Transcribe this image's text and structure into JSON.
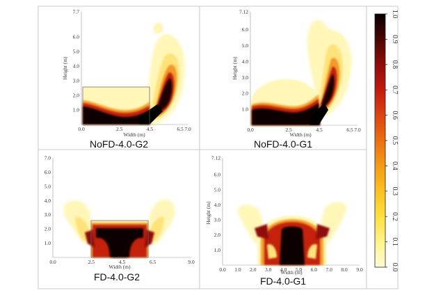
{
  "chart_data": [
    {
      "type": "heatmap",
      "caption": "NoFD-4.0-G2",
      "xlabel": "Width (m)",
      "ylabel": "Height (m)",
      "xlim": [
        0,
        7.0
      ],
      "ylim": [
        0,
        7.7
      ],
      "xticks": [
        "0.0",
        "2.5",
        "4.5",
        "6.5",
        "7.0"
      ],
      "xtick_values": [
        0,
        2.5,
        4.5,
        6.5,
        7.0
      ],
      "yticks": [
        "1.0",
        "2.0",
        "3.0",
        "4.0",
        "5.0",
        "6.0",
        "7.7"
      ],
      "ytick_values": [
        1,
        2,
        3,
        4,
        5,
        6,
        7.7
      ]
    },
    {
      "type": "heatmap",
      "caption": "NoFD-4.0-G1",
      "xlabel": "Width (m)",
      "ylabel": "Height (m)",
      "xlim": [
        0,
        7.0
      ],
      "ylim": [
        0,
        7.12
      ],
      "xticks": [
        "0.0",
        "2.5",
        "4.5",
        "6.5",
        "7.0"
      ],
      "xtick_values": [
        0,
        2.5,
        4.5,
        6.5,
        7.0
      ],
      "yticks": [
        "1.0",
        "2.0",
        "3.0",
        "4.0",
        "5.0",
        "6.0",
        "7.12"
      ],
      "ytick_values": [
        1,
        2,
        3,
        4,
        5,
        6,
        7.12
      ]
    },
    {
      "type": "heatmap",
      "caption": "FD-4.0-G2",
      "xlabel": "Width (m)",
      "ylabel": "",
      "xlim": [
        0,
        9.0
      ],
      "ylim": [
        0,
        7.0
      ],
      "xticks": [
        "0.0",
        "2.5",
        "4.5",
        "6.5",
        "9.0"
      ],
      "xtick_values": [
        0,
        2.5,
        4.5,
        6.5,
        9.0
      ],
      "yticks": [
        "1.0",
        "2.0",
        "3.0",
        "4.0",
        "5.0",
        "6.0",
        "7.0"
      ],
      "ytick_values": [
        1,
        2,
        3,
        4,
        5,
        6,
        7
      ]
    },
    {
      "type": "heatmap",
      "caption": "FD-4.0-G1",
      "xlabel": "Width (m)",
      "ylabel": "Height (m)",
      "xlim": [
        0,
        9.0
      ],
      "ylim": [
        0,
        7.12
      ],
      "xticks": [
        "0.0",
        "1.0",
        "2.0",
        "3.0",
        "4.0",
        "5.0",
        "6.0",
        "7.0",
        "8.0",
        "9.0"
      ],
      "xtick_values": [
        0,
        1,
        2,
        3,
        4,
        5,
        6,
        7,
        8,
        9
      ],
      "yticks": [
        "1.0",
        "2.0",
        "3.0",
        "4.0",
        "5.0",
        "6.0",
        "7.12"
      ],
      "ytick_values": [
        1,
        2,
        3,
        4,
        5,
        6,
        7.12
      ]
    }
  ],
  "colorbar": {
    "range": [
      0.0,
      1.0
    ],
    "ticks": [
      "0.0",
      "0.1",
      "0.2",
      "0.3",
      "0.4",
      "0.5",
      "0.6",
      "0.7",
      "0.8",
      "0.9",
      "1.0"
    ],
    "tick_values": [
      0.0,
      0.1,
      0.2,
      0.3,
      0.4,
      0.5,
      0.6,
      0.7,
      0.8,
      0.9,
      1.0
    ],
    "colors": [
      "#fffbd6",
      "#fff38a",
      "#ffe040",
      "#fcc020",
      "#f49a16",
      "#ea7010",
      "#dc4410",
      "#c21b0f",
      "#8f0d0a",
      "#4a0604",
      "#050000"
    ]
  }
}
